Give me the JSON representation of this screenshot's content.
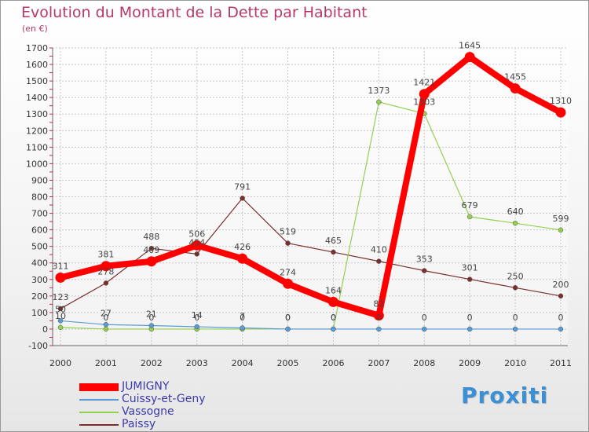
{
  "title": "Evolution du Montant de la Dette par Habitant",
  "subtitle": "(en €)",
  "logo_text": "Proxiti",
  "chart_data": {
    "type": "line",
    "title": "Evolution du Montant de la Dette par Habitant",
    "subtitle": "(en €)",
    "xlabel": "",
    "ylabel": "",
    "ylim": [
      -100,
      1700
    ],
    "yticks": [
      -100,
      0,
      100,
      200,
      300,
      400,
      500,
      600,
      700,
      800,
      900,
      1000,
      1100,
      1200,
      1300,
      1400,
      1500,
      1600,
      1700
    ],
    "categories": [
      "2000",
      "2001",
      "2002",
      "2003",
      "2004",
      "2005",
      "2006",
      "2007",
      "2008",
      "2009",
      "2010",
      "2011"
    ],
    "grid": true,
    "legend_position": "bottom-left",
    "series": [
      {
        "name": "JUMIGNY",
        "color": "#ff0000",
        "values": [
          311,
          381,
          409,
          506,
          426,
          274,
          164,
          82,
          1421,
          1645,
          1455,
          1310
        ]
      },
      {
        "name": "Cuissy-et-Geny",
        "color": "#5b9bd5",
        "values": [
          50,
          27,
          21,
          14,
          7,
          0,
          0,
          0,
          0,
          0,
          0,
          0
        ]
      },
      {
        "name": "Vassogne",
        "color": "#92d050",
        "values": [
          10,
          0,
          0,
          0,
          0,
          0,
          0,
          1373,
          1303,
          679,
          640,
          599
        ]
      },
      {
        "name": "Paissy",
        "color": "#7b2e2e",
        "values": [
          123,
          278,
          488,
          454,
          791,
          519,
          465,
          410,
          353,
          301,
          250,
          200
        ]
      }
    ]
  }
}
